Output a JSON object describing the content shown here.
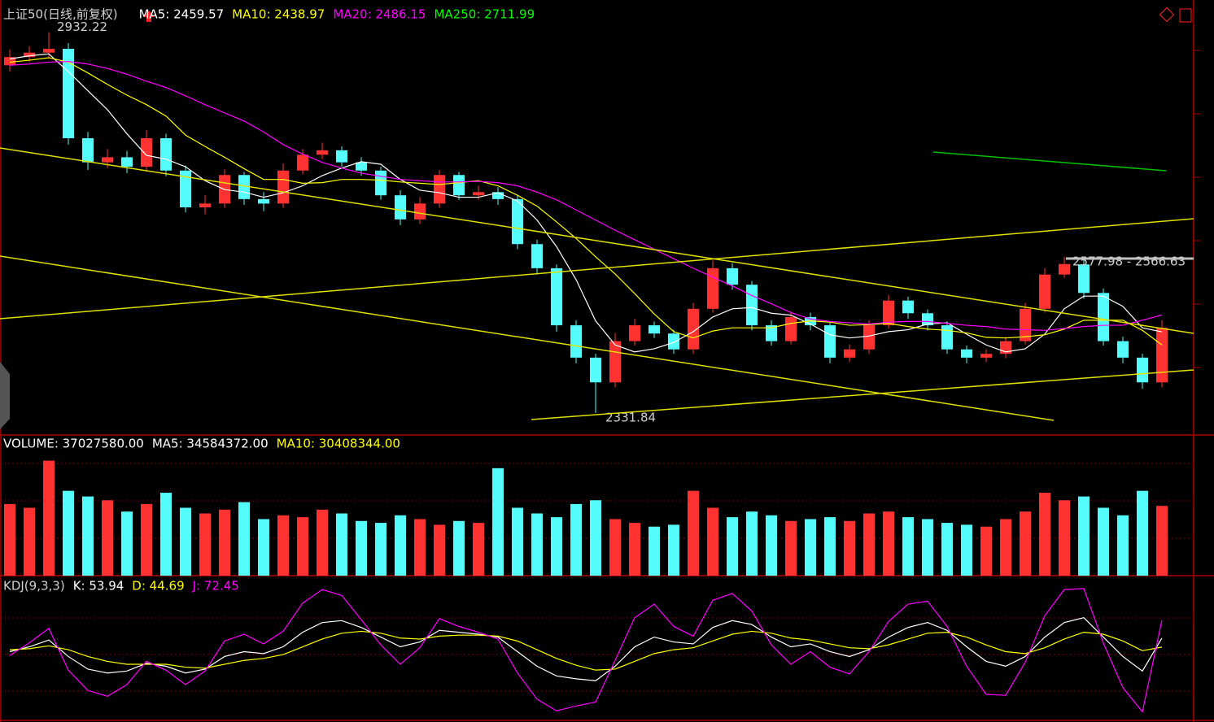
{
  "chart_data": [
    {
      "type": "candlestick",
      "title": "上证50(日线,前复权)",
      "up_color": "#ff3232",
      "down_color": "#54fcfc",
      "open": [
        2880,
        2893,
        2900,
        2906,
        2765,
        2727,
        2735,
        2720,
        2765,
        2714,
        2656,
        2662,
        2707,
        2669,
        2662,
        2714,
        2739,
        2746,
        2727,
        2714,
        2675,
        2637,
        2662,
        2707,
        2675,
        2680,
        2669,
        2598,
        2560,
        2470,
        2419,
        2380,
        2445,
        2470,
        2457,
        2432,
        2496,
        2560,
        2534,
        2470,
        2445,
        2483,
        2470,
        2419,
        2432,
        2470,
        2509,
        2489,
        2470,
        2432,
        2419,
        2425,
        2445,
        2496,
        2550,
        2566,
        2521,
        2445,
        2419,
        2380
      ],
      "high": [
        2905,
        2910,
        2932.22,
        2915,
        2775,
        2748,
        2745,
        2778,
        2772,
        2722,
        2675,
        2716,
        2712,
        2680,
        2725,
        2748,
        2758,
        2752,
        2735,
        2720,
        2683,
        2672,
        2715,
        2712,
        2690,
        2688,
        2675,
        2605,
        2566,
        2478,
        2425,
        2458,
        2480,
        2476,
        2463,
        2505,
        2572,
        2568,
        2540,
        2478,
        2492,
        2490,
        2475,
        2440,
        2478,
        2518,
        2515,
        2495,
        2476,
        2438,
        2432,
        2452,
        2505,
        2560,
        2577.98,
        2572,
        2528,
        2452,
        2425,
        2478
      ],
      "low": [
        2870,
        2885,
        2890,
        2755,
        2715,
        2718,
        2710,
        2712,
        2705,
        2648,
        2645,
        2655,
        2660,
        2650,
        2655,
        2708,
        2732,
        2720,
        2706,
        2668,
        2628,
        2630,
        2655,
        2668,
        2668,
        2660,
        2590,
        2550,
        2460,
        2410,
        2331.84,
        2372,
        2438,
        2450,
        2425,
        2425,
        2490,
        2526,
        2462,
        2438,
        2440,
        2462,
        2410,
        2412,
        2425,
        2465,
        2480,
        2462,
        2425,
        2410,
        2412,
        2418,
        2440,
        2490,
        2545,
        2512,
        2438,
        2410,
        2370,
        2372
      ],
      "close": [
        2893,
        2900,
        2906,
        2765,
        2727,
        2735,
        2720,
        2765,
        2714,
        2656,
        2662,
        2707,
        2669,
        2662,
        2714,
        2739,
        2746,
        2727,
        2714,
        2675,
        2637,
        2662,
        2707,
        2675,
        2680,
        2669,
        2598,
        2560,
        2470,
        2419,
        2380,
        2445,
        2470,
        2457,
        2432,
        2496,
        2560,
        2534,
        2470,
        2445,
        2483,
        2470,
        2419,
        2432,
        2470,
        2509,
        2489,
        2470,
        2432,
        2419,
        2425,
        2445,
        2496,
        2550,
        2566.63,
        2521,
        2445,
        2419,
        2380,
        2466
      ],
      "series": [
        {
          "name": "MA5: 2459.57",
          "color": "#ffffff",
          "values": [
            2890,
            2895,
            2898,
            2870,
            2840,
            2810,
            2772,
            2738,
            2732,
            2720,
            2698,
            2684,
            2680,
            2672,
            2679,
            2690,
            2706,
            2718,
            2728,
            2724,
            2700,
            2683,
            2679,
            2672,
            2672,
            2679,
            2666,
            2636,
            2594,
            2542,
            2477,
            2439,
            2428,
            2433,
            2443,
            2460,
            2483,
            2496,
            2498,
            2489,
            2486,
            2472,
            2455,
            2450,
            2453,
            2460,
            2463,
            2472,
            2474,
            2456,
            2439,
            2428,
            2433,
            2456,
            2496,
            2516,
            2516,
            2500,
            2466,
            2459.57
          ]
        },
        {
          "name": "MA10: 2438.97",
          "color": "#ffff00",
          "values": [
            2885,
            2888,
            2892,
            2885,
            2868,
            2850,
            2833,
            2818,
            2800,
            2770,
            2752,
            2735,
            2717,
            2700,
            2700,
            2694,
            2695,
            2700,
            2700,
            2699,
            2696,
            2694,
            2692,
            2695,
            2698,
            2690,
            2675,
            2658,
            2633,
            2607,
            2578,
            2551,
            2520,
            2488,
            2460,
            2450,
            2461,
            2466,
            2466,
            2466,
            2473,
            2477,
            2475,
            2470,
            2471,
            2473,
            2468,
            2464,
            2462,
            2458,
            2451,
            2450,
            2452,
            2455,
            2464,
            2478,
            2478,
            2478,
            2462,
            2438.97
          ]
        },
        {
          "name": "MA20: 2486.15",
          "color": "#ff00ff",
          "values": [
            2880,
            2882,
            2885,
            2886,
            2882,
            2875,
            2866,
            2855,
            2845,
            2832,
            2818,
            2805,
            2792,
            2775,
            2755,
            2740,
            2727,
            2718,
            2710,
            2705,
            2700,
            2698,
            2696,
            2696,
            2697,
            2695,
            2690,
            2680,
            2668,
            2652,
            2636,
            2620,
            2605,
            2590,
            2575,
            2560,
            2546,
            2532,
            2517,
            2504,
            2490,
            2480,
            2476,
            2474,
            2472,
            2475,
            2476,
            2476,
            2473,
            2470,
            2468,
            2464,
            2463,
            2462,
            2465,
            2468,
            2470,
            2470,
            2478,
            2486.15
          ]
        },
        {
          "name": "MA250: 2711.99",
          "color": "#00ff00"
        }
      ],
      "annotations": [
        "2932.22",
        "2331.84",
        "2577.98 - 2566.63"
      ],
      "ylim": [
        2297,
        2983
      ]
    },
    {
      "type": "bar",
      "series": [
        {
          "name": "VOLUME: 37027580.00",
          "color": "#ffffff",
          "values": [
            38000000,
            36000000,
            61000000,
            45000000,
            42000000,
            40000000,
            34000000,
            38000000,
            44000000,
            36000000,
            33000000,
            35000000,
            39000000,
            30000000,
            32000000,
            31000000,
            35000000,
            33000000,
            29000000,
            28000000,
            32000000,
            30000000,
            27000000,
            29000000,
            28000000,
            57000000,
            36000000,
            33000000,
            31000000,
            38000000,
            40000000,
            30000000,
            28000000,
            26000000,
            27000000,
            45000000,
            36000000,
            31000000,
            34000000,
            32000000,
            29000000,
            30000000,
            31000000,
            29000000,
            33000000,
            34000000,
            31000000,
            30000000,
            28000000,
            27000000,
            26000000,
            30000000,
            34000000,
            44000000,
            40000000,
            42000000,
            36000000,
            32000000,
            45000000,
            37027580
          ]
        },
        {
          "name": "MA5: 34584372.00",
          "color": "#ffffff"
        },
        {
          "name": "MA10: 30408344.00",
          "color": "#ffff00"
        }
      ],
      "ylim": [
        0,
        69000000
      ]
    },
    {
      "type": "line",
      "title": "KDJ(9,3,3)",
      "series": [
        {
          "name": "K: 53.94",
          "color": "#ffffff",
          "values": [
            40,
            45,
            52,
            35,
            22,
            18,
            20,
            28,
            25,
            18,
            22,
            35,
            40,
            38,
            45,
            60,
            70,
            72,
            65,
            55,
            45,
            50,
            62,
            60,
            58,
            55,
            40,
            25,
            15,
            12,
            10,
            25,
            45,
            55,
            50,
            48,
            65,
            72,
            68,
            55,
            45,
            48,
            40,
            35,
            42,
            55,
            65,
            70,
            62,
            45,
            30,
            25,
            35,
            55,
            70,
            75,
            55,
            35,
            20,
            53.94
          ]
        },
        {
          "name": "D: 44.69",
          "color": "#ffff00",
          "values": [
            42,
            43,
            46,
            42,
            35,
            30,
            27,
            27,
            27,
            24,
            23,
            27,
            31,
            33,
            37,
            45,
            53,
            59,
            61,
            59,
            54,
            53,
            56,
            57,
            57,
            56,
            51,
            42,
            33,
            26,
            21,
            22,
            30,
            38,
            42,
            44,
            51,
            58,
            61,
            59,
            54,
            52,
            48,
            44,
            43,
            47,
            53,
            59,
            60,
            55,
            47,
            40,
            38,
            44,
            53,
            60,
            58,
            51,
            41,
            44.69
          ]
        },
        {
          "name": "J: 72.45",
          "color": "#ff00ff",
          "values": [
            36,
            49,
            64,
            21,
            0,
            -6,
            6,
            30,
            21,
            6,
            20,
            51,
            58,
            48,
            61,
            90,
            104,
            98,
            73,
            47,
            27,
            44,
            74,
            66,
            60,
            53,
            18,
            -9,
            -21,
            -16,
            -12,
            31,
            75,
            89,
            66,
            56,
            93,
            100,
            82,
            47,
            27,
            40,
            24,
            17,
            40,
            71,
            89,
            92,
            66,
            25,
            -4,
            -5,
            29,
            77,
            104,
            105,
            49,
            3,
            -22,
            72.45
          ]
        }
      ],
      "ylim": [
        -30,
        115
      ]
    }
  ]
}
